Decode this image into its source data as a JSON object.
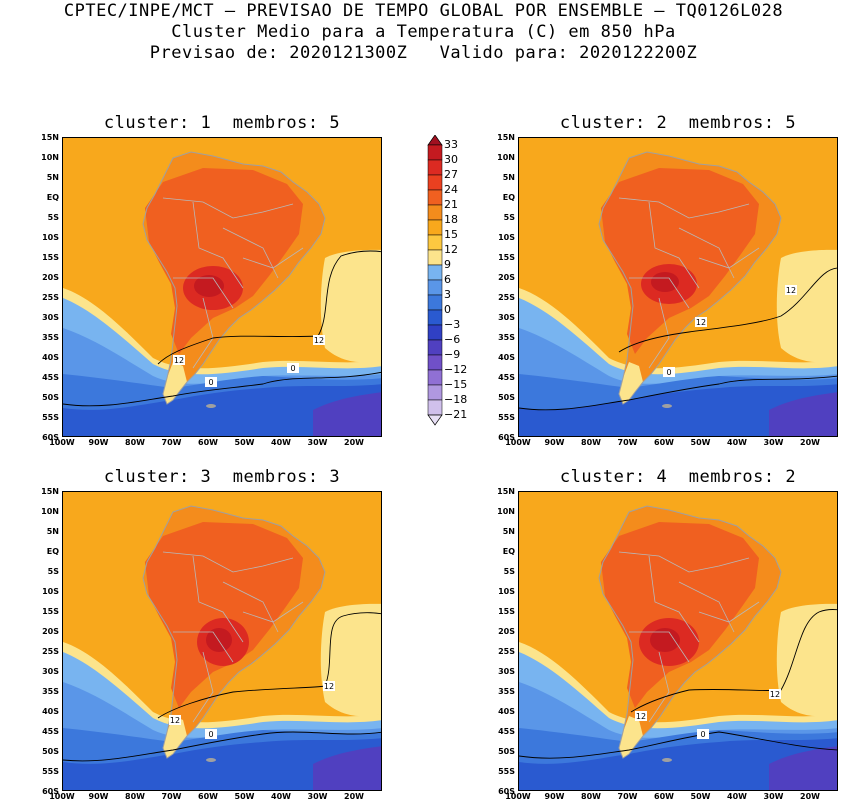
{
  "header": {
    "line1": "CPTEC/INPE/MCT – PREVISAO DE TEMPO GLOBAL POR ENSEMBLE – TQ0126L028",
    "line2": "Cluster Medio para a Temperatura (C) em 850 hPa",
    "line3": "Previsao de: 2020121300Z   Valido para: 2020122200Z"
  },
  "panels": [
    {
      "title": "cluster: 1  membros: 5",
      "contour_labels": [
        "12",
        "12",
        "0",
        "0"
      ]
    },
    {
      "title": "cluster: 2  membros: 5",
      "contour_labels": [
        "12",
        "12",
        "0"
      ]
    },
    {
      "title": "cluster: 3  membros: 3",
      "contour_labels": [
        "12",
        "12",
        "0"
      ]
    },
    {
      "title": "cluster: 4  membros: 2",
      "contour_labels": [
        "12",
        "12",
        "0"
      ]
    }
  ],
  "lat_labels": [
    "15N",
    "10N",
    "5N",
    "EQ",
    "5S",
    "10S",
    "15S",
    "20S",
    "25S",
    "30S",
    "35S",
    "40S",
    "45S",
    "50S",
    "55S",
    "60S"
  ],
  "lon_labels": [
    "100W",
    "90W",
    "80W",
    "70W",
    "60W",
    "50W",
    "40W",
    "30W",
    "20W"
  ],
  "colorbar": {
    "labels": [
      "33",
      "30",
      "27",
      "24",
      "21",
      "18",
      "15",
      "12",
      "9",
      "6",
      "3",
      "0",
      "−3",
      "−6",
      "−9",
      "−12",
      "−15",
      "−18",
      "−21"
    ],
    "colors": [
      "#a01020",
      "#c41a20",
      "#dc2a22",
      "#ea4020",
      "#f06020",
      "#f48c1c",
      "#f8a81c",
      "#fcc840",
      "#fce48c",
      "#78b4f0",
      "#5a96e8",
      "#3c78dc",
      "#2a5ad0",
      "#3040c4",
      "#5040c0",
      "#7050c8",
      "#9070d4",
      "#b098e0",
      "#d0c0ec",
      "#e8e0f6"
    ]
  }
}
